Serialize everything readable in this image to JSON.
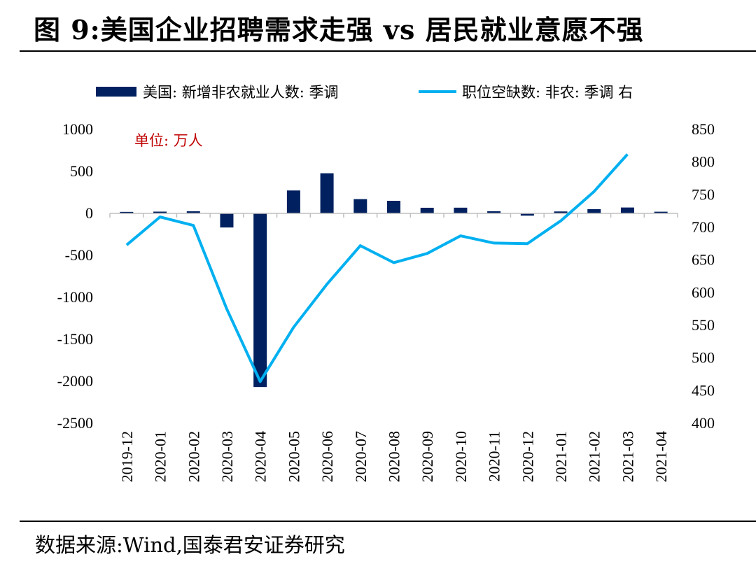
{
  "title": "图 9:美国企业招聘需求走强 vs 居民就业意愿不强",
  "source": "数据来源:Wind,国泰君安证券研究",
  "colors": {
    "bar": "#002060",
    "line": "#00b0f0",
    "unit": "#c00000"
  },
  "chart_data": {
    "type": "bar+line",
    "unit_label": "单位: 万人",
    "legend_position": "top",
    "grid": false,
    "categories": [
      "2019-12",
      "2020-01",
      "2020-02",
      "2020-03",
      "2020-04",
      "2020-05",
      "2020-06",
      "2020-07",
      "2020-08",
      "2020-09",
      "2020-10",
      "2020-11",
      "2020-12",
      "2021-01",
      "2021-02",
      "2021-03",
      "2021-04"
    ],
    "y_left": {
      "min": -2500,
      "max": 1000,
      "ticks": [
        1000,
        500,
        0,
        -500,
        -1000,
        -1500,
        -2000,
        -2500
      ]
    },
    "y_right": {
      "min": 400,
      "max": 850,
      "ticks": [
        850,
        800,
        750,
        700,
        650,
        600,
        550,
        500,
        450,
        400
      ]
    },
    "series": [
      {
        "name": "美国: 新增非农就业人数: 季调",
        "type": "bar",
        "axis": "left",
        "values": [
          18,
          21,
          25,
          -168,
          -2068,
          273,
          478,
          170,
          150,
          67,
          68,
          26,
          -27,
          23,
          50,
          70,
          20
        ]
      },
      {
        "name": "职位空缺数: 非农: 季调 右",
        "type": "line",
        "axis": "right",
        "values": [
          673,
          716,
          703,
          575,
          464,
          547,
          613,
          672,
          646,
          660,
          687,
          676,
          675,
          710,
          755,
          812,
          null
        ]
      }
    ]
  }
}
